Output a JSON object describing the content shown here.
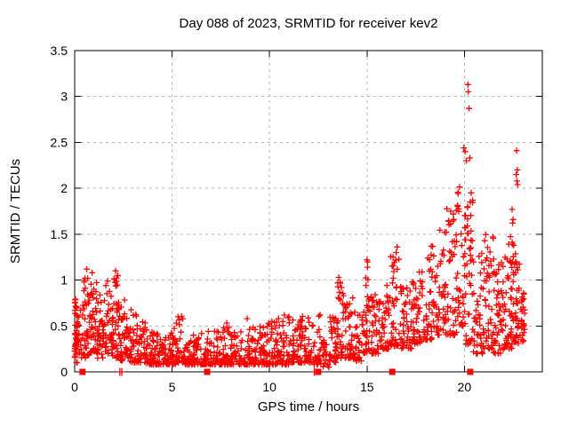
{
  "chart_data": {
    "type": "scatter",
    "title": "Day 088 of 2023, SRMTID for receiver kev2",
    "xlabel": "GPS time / hours",
    "ylabel": "SRMTID / TECUs",
    "xlim": [
      0,
      24
    ],
    "ylim": [
      0,
      3.5
    ],
    "xticks": [
      0,
      5,
      10,
      15,
      20
    ],
    "yticks": [
      0,
      0.5,
      1,
      1.5,
      2,
      2.5,
      3,
      3.5
    ],
    "grid": true,
    "legend": "none",
    "marker": {
      "shape": "plus",
      "size": 7
    },
    "colors": {
      "points": "#ff0000",
      "grid": "#b4b4b4",
      "axis": "#000000",
      "background": "#ffffff"
    },
    "seed": 88,
    "point_bins": [
      [
        0.0,
        0.15,
        40,
        0.1,
        0.8,
        1.2
      ],
      [
        0.05,
        0.5,
        25,
        0.15,
        0.75,
        1.5
      ],
      [
        0.45,
        0.75,
        30,
        0.15,
        1.05,
        1.6
      ],
      [
        0.75,
        1.15,
        40,
        0.2,
        1.05,
        1.7
      ],
      [
        1.15,
        1.55,
        35,
        0.15,
        0.95,
        1.7
      ],
      [
        1.55,
        1.95,
        40,
        0.2,
        1.0,
        1.7
      ],
      [
        1.95,
        2.35,
        45,
        0.15,
        1.05,
        1.6
      ],
      [
        2.35,
        2.75,
        35,
        0.12,
        0.8,
        1.8
      ],
      [
        2.75,
        3.2,
        35,
        0.1,
        0.68,
        1.8
      ],
      [
        3.2,
        3.7,
        40,
        0.1,
        0.55,
        1.8
      ],
      [
        3.7,
        4.2,
        40,
        0.08,
        0.45,
        1.8
      ],
      [
        4.2,
        4.7,
        40,
        0.08,
        0.45,
        2.0
      ],
      [
        4.7,
        5.2,
        40,
        0.08,
        0.55,
        2.2
      ],
      [
        5.2,
        5.6,
        30,
        0.1,
        0.62,
        2.2
      ],
      [
        5.6,
        6.2,
        45,
        0.08,
        0.4,
        2.0
      ],
      [
        6.2,
        6.8,
        45,
        0.08,
        0.45,
        2.2
      ],
      [
        6.8,
        7.4,
        45,
        0.08,
        0.45,
        2.0
      ],
      [
        7.4,
        8.0,
        45,
        0.08,
        0.55,
        2.2
      ],
      [
        8.0,
        8.6,
        45,
        0.08,
        0.45,
        2.0
      ],
      [
        8.6,
        9.2,
        45,
        0.08,
        0.6,
        2.2
      ],
      [
        9.2,
        9.8,
        45,
        0.08,
        0.5,
        2.0
      ],
      [
        9.8,
        10.4,
        45,
        0.08,
        0.55,
        2.2
      ],
      [
        10.4,
        11.0,
        45,
        0.08,
        0.62,
        2.2
      ],
      [
        11.0,
        11.6,
        45,
        0.1,
        0.6,
        2.0
      ],
      [
        11.6,
        12.2,
        45,
        0.1,
        0.62,
        2.0
      ],
      [
        12.2,
        12.75,
        30,
        0.08,
        0.62,
        1.8
      ],
      [
        12.75,
        13.1,
        22,
        0.05,
        0.35,
        1.5
      ],
      [
        13.1,
        13.45,
        28,
        0.1,
        0.6,
        1.6
      ],
      [
        13.45,
        13.8,
        35,
        0.15,
        1.0,
        1.9
      ],
      [
        13.8,
        14.3,
        40,
        0.15,
        0.9,
        1.9
      ],
      [
        14.3,
        14.8,
        35,
        0.12,
        0.65,
        1.7
      ],
      [
        14.8,
        15.25,
        40,
        0.2,
        1.2,
        1.9
      ],
      [
        15.25,
        15.75,
        40,
        0.2,
        0.85,
        1.7
      ],
      [
        15.75,
        16.2,
        35,
        0.25,
        0.95,
        1.7
      ],
      [
        16.2,
        16.7,
        40,
        0.28,
        1.3,
        1.9
      ],
      [
        16.7,
        17.3,
        45,
        0.25,
        1.0,
        1.7
      ],
      [
        17.3,
        17.9,
        45,
        0.3,
        1.1,
        1.7
      ],
      [
        17.9,
        18.5,
        45,
        0.35,
        1.4,
        1.8
      ],
      [
        18.5,
        19.1,
        45,
        0.4,
        1.55,
        1.8
      ],
      [
        19.1,
        19.6,
        40,
        0.4,
        1.8,
        1.8
      ],
      [
        19.6,
        20.05,
        40,
        0.5,
        2.1,
        1.7
      ],
      [
        20.05,
        20.45,
        40,
        0.3,
        1.9,
        1.5
      ],
      [
        20.45,
        21.0,
        40,
        0.2,
        1.35,
        1.7
      ],
      [
        21.0,
        21.5,
        45,
        0.25,
        1.5,
        1.9
      ],
      [
        21.5,
        22.0,
        50,
        0.2,
        1.3,
        1.8
      ],
      [
        22.0,
        22.45,
        45,
        0.25,
        1.5,
        1.9
      ],
      [
        22.45,
        22.85,
        45,
        0.3,
        1.45,
        1.8
      ],
      [
        22.85,
        23.1,
        25,
        0.3,
        1.1,
        1.7
      ]
    ],
    "notable_points": [
      [
        20.18,
        3.13
      ],
      [
        20.2,
        3.05
      ],
      [
        20.24,
        2.87
      ],
      [
        19.97,
        2.44
      ],
      [
        20.04,
        2.4
      ],
      [
        20.28,
        2.33
      ],
      [
        20.1,
        2.3
      ],
      [
        22.68,
        2.41
      ],
      [
        22.72,
        2.2
      ],
      [
        22.66,
        2.15
      ],
      [
        22.7,
        2.08
      ],
      [
        22.73,
        2.04
      ],
      [
        22.45,
        1.77
      ],
      [
        22.5,
        1.66
      ],
      [
        22.47,
        1.62
      ],
      [
        19.3,
        1.75
      ],
      [
        19.45,
        1.66
      ],
      [
        20.35,
        1.95
      ],
      [
        20.3,
        1.85
      ],
      [
        15.0,
        1.22
      ],
      [
        15.03,
        1.14
      ],
      [
        16.55,
        1.36
      ],
      [
        16.5,
        1.3
      ],
      [
        13.55,
        1.03
      ],
      [
        13.5,
        0.97
      ],
      [
        18.3,
        1.37
      ],
      [
        19.0,
        1.52
      ],
      [
        12.6,
        0.62
      ],
      [
        11.0,
        0.6
      ],
      [
        8.85,
        0.58
      ],
      [
        5.3,
        0.6
      ],
      [
        2.1,
        1.1
      ],
      [
        0.9,
        1.08
      ],
      [
        0.62,
        1.12
      ],
      [
        2.2,
        1.05
      ]
    ],
    "zero_line_squares": [
      0.4,
      6.8,
      12.5,
      16.3,
      20.3
    ],
    "zero_line_plusses": [
      2.32,
      2.42,
      12.3
    ]
  }
}
